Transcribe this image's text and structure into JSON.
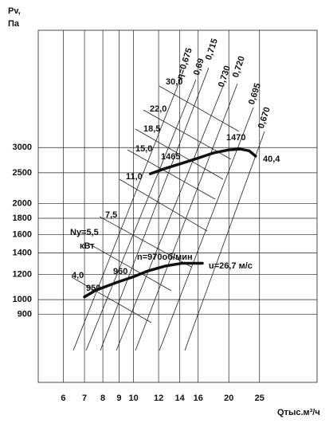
{
  "chart_data": {
    "type": "line",
    "ylabel": [
      "Pv,",
      "Па"
    ],
    "xlabel": "Qтыс.м³/ч",
    "xlog": true,
    "ylog": true,
    "grid": true,
    "xlim": [
      5,
      38
    ],
    "ylim": [
      550,
      7000
    ],
    "xticks": [
      6,
      7,
      8,
      9,
      10,
      12,
      14,
      16,
      20,
      25
    ],
    "yticks": [
      900,
      1000,
      1200,
      1400,
      1600,
      1800,
      2000,
      2500,
      3000
    ],
    "series": [
      {
        "color": "#111111",
        "x": [
          7,
          7.6,
          8.8,
          10,
          11.1,
          12.6,
          14.2,
          16.5
        ],
        "values": [
          1020,
          1070,
          1130,
          1180,
          1230,
          1275,
          1300,
          1300
        ]
      },
      {
        "color": "#111111",
        "x": [
          11.3,
          12.6,
          14.2,
          16,
          17.9,
          20,
          21.7,
          23.2,
          24.3
        ],
        "values": [
          2483,
          2580,
          2676,
          2780,
          2886,
          2950,
          2968,
          2930,
          2820
        ]
      }
    ],
    "annotations": [
      "30,0",
      "22,0",
      "18,5",
      "15,0",
      "11,0",
      "7,5",
      "Ny=5,5",
      "кВт",
      "4,0",
      "950",
      "960",
      "n=970об/мин",
      "1465",
      "1470",
      "40,4",
      "u=26,7 м/с",
      "η=0,675",
      "0,69",
      "0,715",
      "0,730",
      "0,720",
      "0,695",
      "0,670"
    ]
  }
}
